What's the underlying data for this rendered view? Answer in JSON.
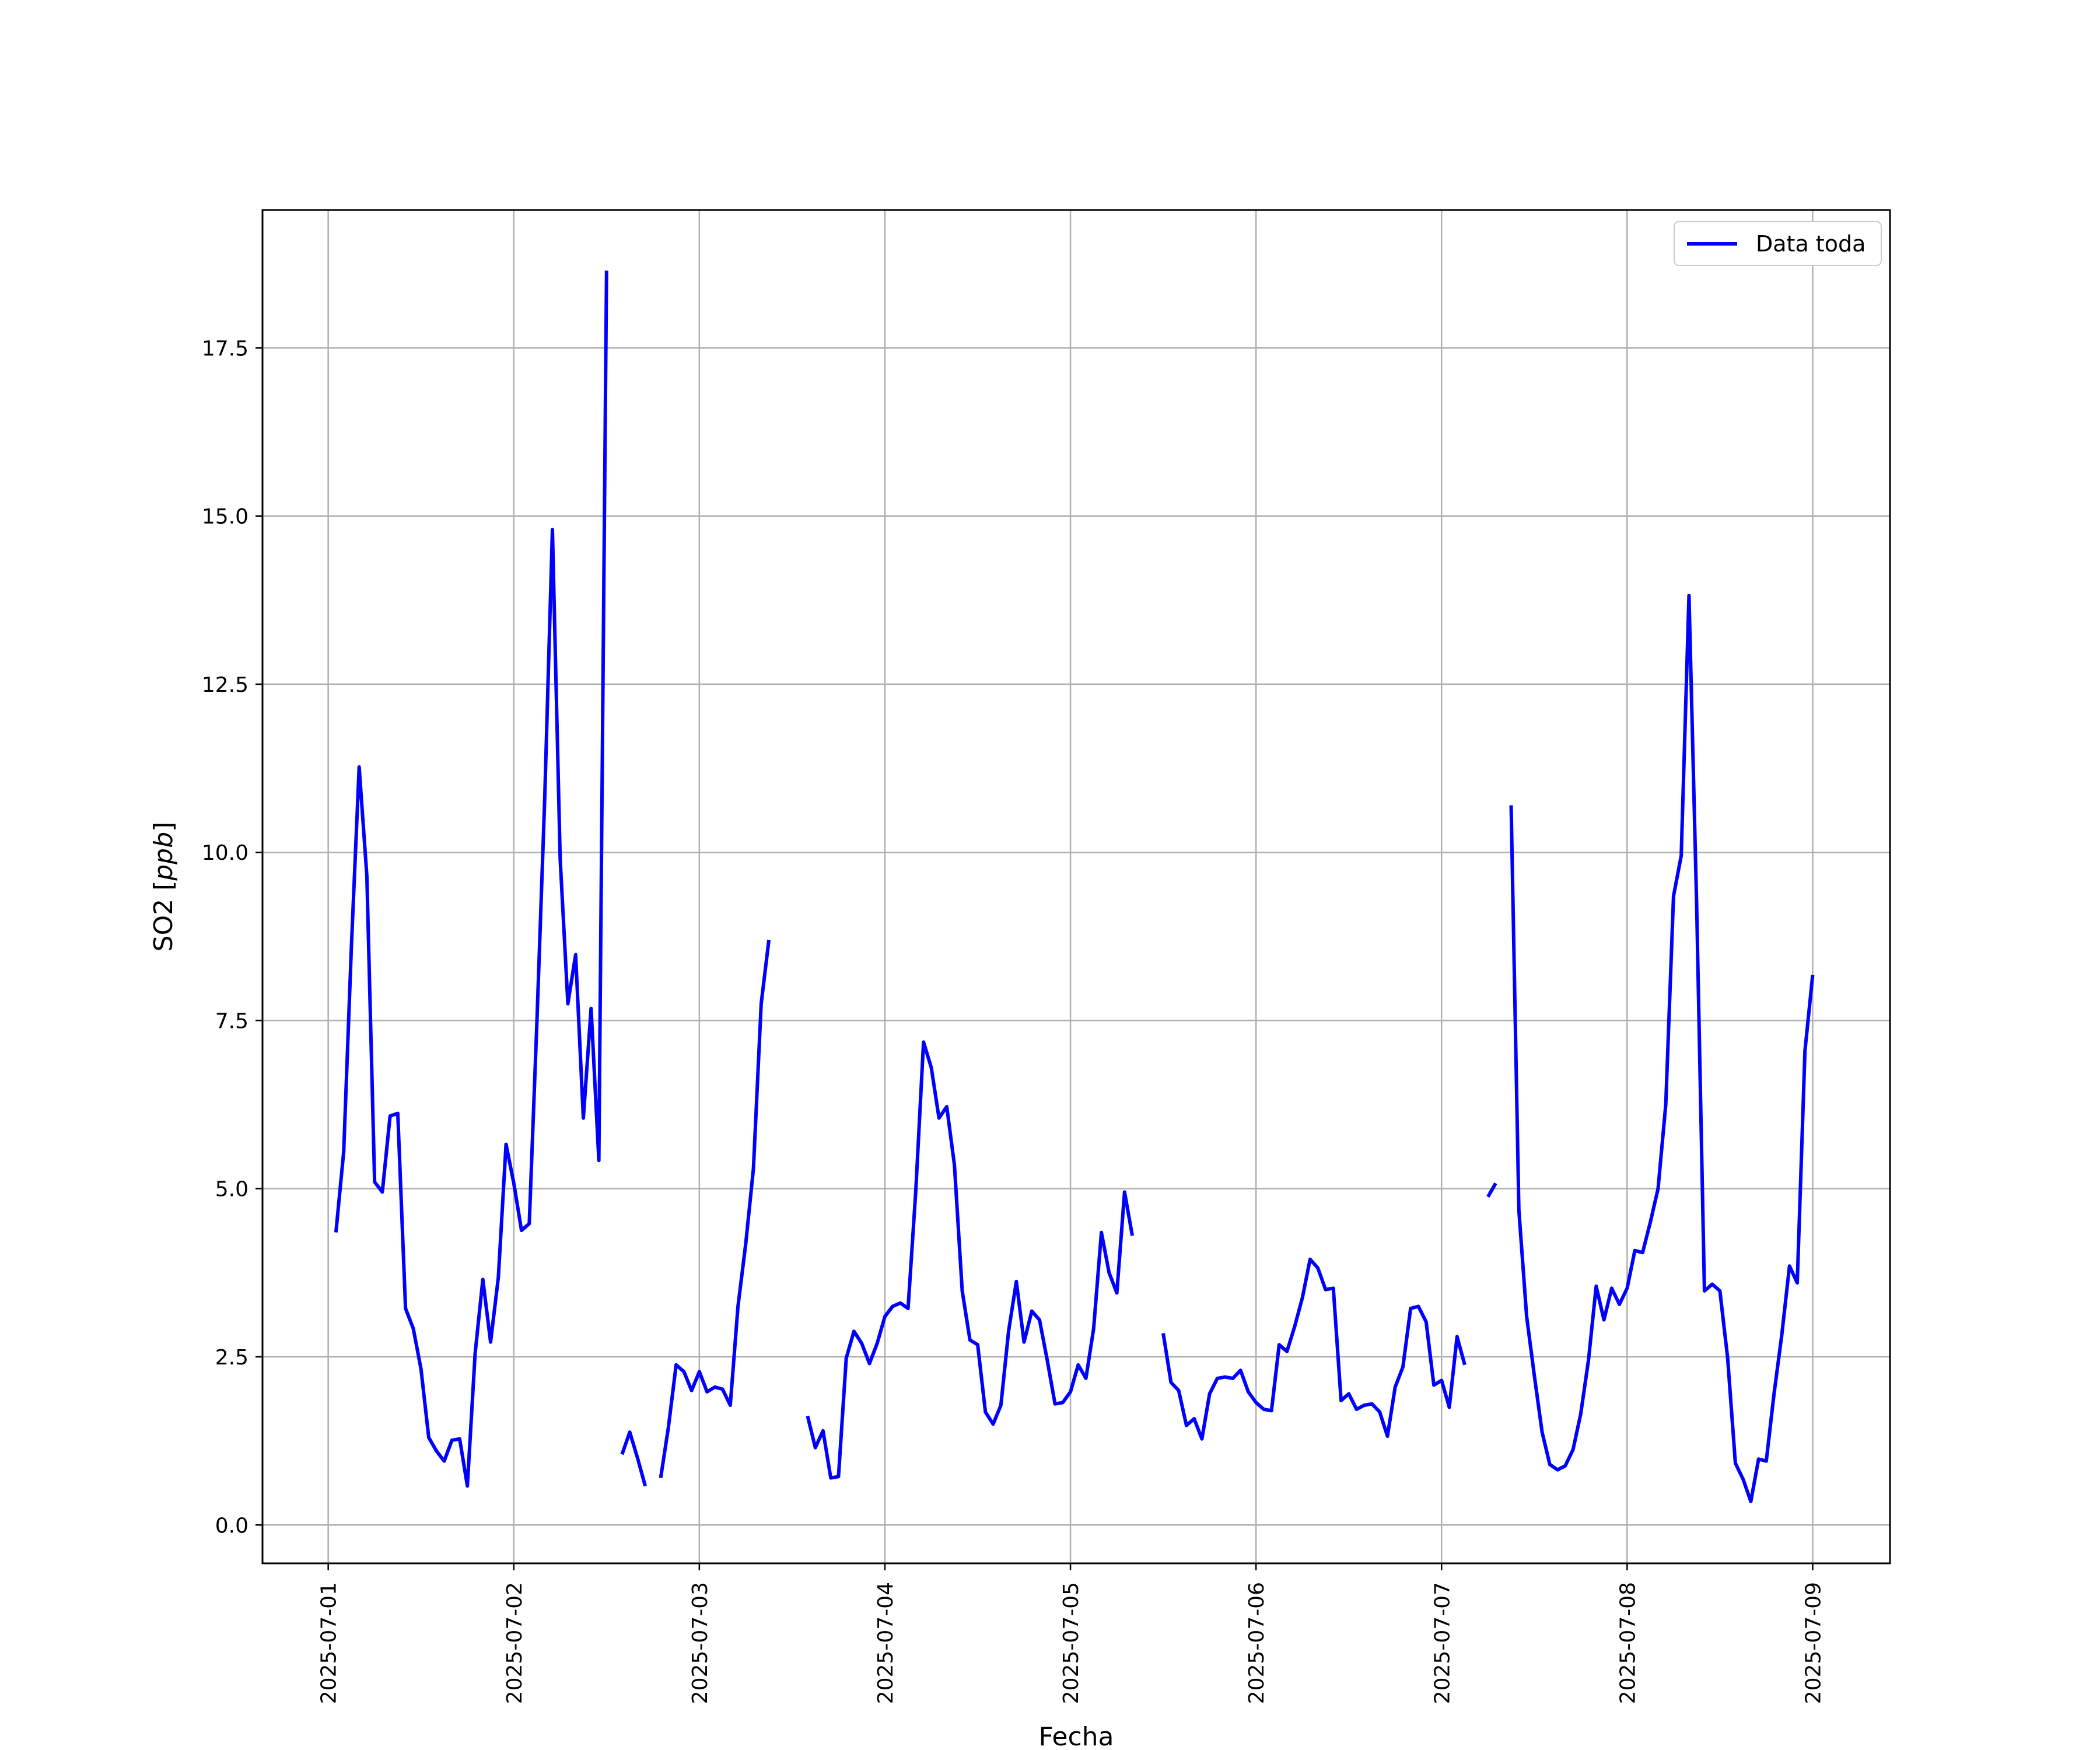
{
  "chart_data": {
    "type": "line",
    "xlabel": "Fecha",
    "ylabel": "SO2 [ppb]",
    "ylabel_main": "SO2 ",
    "ylabel_unit": "ppb",
    "x_ticks": [
      "2025-07-01",
      "2025-07-02",
      "2025-07-03",
      "2025-07-04",
      "2025-07-05",
      "2025-07-06",
      "2025-07-07",
      "2025-07-08",
      "2025-07-09"
    ],
    "y_ticks": [
      "0.0",
      "2.5",
      "5.0",
      "7.5",
      "10.0",
      "12.5",
      "15.0",
      "17.5"
    ],
    "y_tick_values": [
      0,
      2.5,
      5,
      7.5,
      10,
      12.5,
      15,
      17.5
    ],
    "xlim": [
      "2025-06-30 15:30",
      "2025-07-09 10:00"
    ],
    "ylim": [
      -0.57,
      19.55
    ],
    "grid": true,
    "legend": "top-right",
    "colors": {
      "series": "#0000ff",
      "grid": "#b0b0b0"
    },
    "series": [
      {
        "name": "Data toda",
        "points": [
          [
            "2025-07-01 01:00",
            4.35
          ],
          [
            "2025-07-01 02:00",
            5.55
          ],
          [
            "2025-07-01 03:00",
            8.6
          ],
          [
            "2025-07-01 04:00",
            11.27
          ],
          [
            "2025-07-01 05:00",
            9.65
          ],
          [
            "2025-07-01 06:00",
            5.1
          ],
          [
            "2025-07-01 07:00",
            4.95
          ],
          [
            "2025-07-01 08:00",
            6.08
          ],
          [
            "2025-07-01 09:00",
            6.12
          ],
          [
            "2025-07-01 10:00",
            3.22
          ],
          [
            "2025-07-01 11:00",
            2.92
          ],
          [
            "2025-07-01 12:00",
            2.32
          ],
          [
            "2025-07-01 13:00",
            1.3
          ],
          [
            "2025-07-01 14:00",
            1.1
          ],
          [
            "2025-07-01 15:00",
            0.95
          ],
          [
            "2025-07-01 16:00",
            1.26
          ],
          [
            "2025-07-01 17:00",
            1.28
          ],
          [
            "2025-07-01 18:00",
            0.58
          ],
          [
            "2025-07-01 19:00",
            2.55
          ],
          [
            "2025-07-01 20:00",
            3.65
          ],
          [
            "2025-07-01 21:00",
            2.72
          ],
          [
            "2025-07-01 22:00",
            3.68
          ],
          [
            "2025-07-01 23:00",
            5.66
          ],
          [
            "2025-07-02 00:00",
            5.08
          ],
          [
            "2025-07-02 01:00",
            4.38
          ],
          [
            "2025-07-02 02:00",
            4.48
          ],
          [
            "2025-07-02 03:00",
            7.5
          ],
          [
            "2025-07-02 04:00",
            10.8
          ],
          [
            "2025-07-02 05:00",
            14.8
          ],
          [
            "2025-07-02 06:00",
            9.9
          ],
          [
            "2025-07-02 07:00",
            7.75
          ],
          [
            "2025-07-02 08:00",
            8.48
          ],
          [
            "2025-07-02 09:00",
            6.05
          ],
          [
            "2025-07-02 10:00",
            7.68
          ],
          [
            "2025-07-02 11:00",
            5.42
          ],
          [
            "2025-07-02 12:00",
            18.65
          ],
          null,
          [
            "2025-07-02 14:00",
            1.05
          ],
          [
            "2025-07-02 15:00",
            1.38
          ],
          [
            "2025-07-02 16:00",
            1.0
          ],
          [
            "2025-07-02 17:00",
            0.58
          ],
          null,
          [
            "2025-07-02 19:00",
            0.7
          ],
          [
            "2025-07-02 20:00",
            1.45
          ],
          [
            "2025-07-02 21:00",
            2.38
          ],
          [
            "2025-07-02 22:00",
            2.28
          ],
          [
            "2025-07-02 23:00",
            2.0
          ],
          [
            "2025-07-03 00:00",
            2.28
          ],
          [
            "2025-07-03 01:00",
            1.98
          ],
          [
            "2025-07-03 02:00",
            2.05
          ],
          [
            "2025-07-03 03:00",
            2.02
          ],
          [
            "2025-07-03 04:00",
            1.78
          ],
          [
            "2025-07-03 05:00",
            3.25
          ],
          [
            "2025-07-03 06:00",
            4.18
          ],
          [
            "2025-07-03 07:00",
            5.3
          ],
          [
            "2025-07-03 08:00",
            7.75
          ],
          [
            "2025-07-03 09:00",
            8.7
          ],
          null,
          [
            "2025-07-03 14:00",
            1.62
          ],
          [
            "2025-07-03 15:00",
            1.15
          ],
          [
            "2025-07-03 16:00",
            1.4
          ],
          [
            "2025-07-03 17:00",
            0.7
          ],
          [
            "2025-07-03 18:00",
            0.72
          ],
          [
            "2025-07-03 19:00",
            2.48
          ],
          [
            "2025-07-03 20:00",
            2.88
          ],
          [
            "2025-07-03 21:00",
            2.7
          ],
          [
            "2025-07-03 22:00",
            2.4
          ],
          [
            "2025-07-03 23:00",
            2.7
          ],
          [
            "2025-07-04 00:00",
            3.1
          ],
          [
            "2025-07-04 01:00",
            3.25
          ],
          [
            "2025-07-04 02:00",
            3.3
          ],
          [
            "2025-07-04 03:00",
            3.22
          ],
          [
            "2025-07-04 04:00",
            4.98
          ],
          [
            "2025-07-04 05:00",
            7.18
          ],
          [
            "2025-07-04 06:00",
            6.8
          ],
          [
            "2025-07-04 07:00",
            6.05
          ],
          [
            "2025-07-04 08:00",
            6.22
          ],
          [
            "2025-07-04 09:00",
            5.35
          ],
          [
            "2025-07-04 10:00",
            3.48
          ],
          [
            "2025-07-04 11:00",
            2.75
          ],
          [
            "2025-07-04 12:00",
            2.68
          ],
          [
            "2025-07-04 13:00",
            1.68
          ],
          [
            "2025-07-04 14:00",
            1.5
          ],
          [
            "2025-07-04 15:00",
            1.78
          ],
          [
            "2025-07-04 16:00",
            2.88
          ],
          [
            "2025-07-04 17:00",
            3.62
          ],
          [
            "2025-07-04 18:00",
            2.72
          ],
          [
            "2025-07-04 19:00",
            3.18
          ],
          [
            "2025-07-04 20:00",
            3.05
          ],
          [
            "2025-07-04 21:00",
            2.45
          ],
          [
            "2025-07-04 22:00",
            1.8
          ],
          [
            "2025-07-04 23:00",
            1.82
          ],
          [
            "2025-07-05 00:00",
            1.98
          ],
          [
            "2025-07-05 01:00",
            2.38
          ],
          [
            "2025-07-05 02:00",
            2.18
          ],
          [
            "2025-07-05 03:00",
            2.92
          ],
          [
            "2025-07-05 04:00",
            4.35
          ],
          [
            "2025-07-05 05:00",
            3.75
          ],
          [
            "2025-07-05 06:00",
            3.45
          ],
          [
            "2025-07-05 07:00",
            4.95
          ],
          [
            "2025-07-05 08:00",
            4.3
          ],
          null,
          [
            "2025-07-05 12:00",
            2.85
          ],
          [
            "2025-07-05 13:00",
            2.12
          ],
          [
            "2025-07-05 14:00",
            2.0
          ],
          [
            "2025-07-05 15:00",
            1.48
          ],
          [
            "2025-07-05 16:00",
            1.58
          ],
          [
            "2025-07-05 17:00",
            1.28
          ],
          [
            "2025-07-05 18:00",
            1.95
          ],
          [
            "2025-07-05 19:00",
            2.18
          ],
          [
            "2025-07-05 20:00",
            2.2
          ],
          [
            "2025-07-05 21:00",
            2.18
          ],
          [
            "2025-07-05 22:00",
            2.3
          ],
          [
            "2025-07-05 23:00",
            1.98
          ],
          [
            "2025-07-06 00:00",
            1.82
          ],
          [
            "2025-07-06 01:00",
            1.72
          ],
          [
            "2025-07-06 02:00",
            1.7
          ],
          [
            "2025-07-06 03:00",
            2.68
          ],
          [
            "2025-07-06 04:00",
            2.58
          ],
          [
            "2025-07-06 05:00",
            2.95
          ],
          [
            "2025-07-06 06:00",
            3.38
          ],
          [
            "2025-07-06 07:00",
            3.95
          ],
          [
            "2025-07-06 08:00",
            3.82
          ],
          [
            "2025-07-06 09:00",
            3.5
          ],
          [
            "2025-07-06 10:00",
            3.52
          ],
          [
            "2025-07-06 11:00",
            1.85
          ],
          [
            "2025-07-06 12:00",
            1.95
          ],
          [
            "2025-07-06 13:00",
            1.72
          ],
          [
            "2025-07-06 14:00",
            1.78
          ],
          [
            "2025-07-06 15:00",
            1.8
          ],
          [
            "2025-07-06 16:00",
            1.68
          ],
          [
            "2025-07-06 17:00",
            1.32
          ],
          [
            "2025-07-06 18:00",
            2.05
          ],
          [
            "2025-07-06 19:00",
            2.35
          ],
          [
            "2025-07-06 20:00",
            3.22
          ],
          [
            "2025-07-06 21:00",
            3.25
          ],
          [
            "2025-07-06 22:00",
            3.02
          ],
          [
            "2025-07-06 23:00",
            2.08
          ],
          [
            "2025-07-07 00:00",
            2.15
          ],
          [
            "2025-07-07 01:00",
            1.75
          ],
          [
            "2025-07-07 02:00",
            2.8
          ],
          [
            "2025-07-07 03:00",
            2.38
          ],
          null,
          [
            "2025-07-07 06:00",
            4.88
          ],
          [
            "2025-07-07 07:00",
            5.08
          ],
          null,
          [
            "2025-07-07 09:00",
            10.7
          ],
          [
            "2025-07-07 10:00",
            4.68
          ],
          [
            "2025-07-07 11:00",
            3.1
          ],
          [
            "2025-07-07 12:00",
            2.22
          ],
          [
            "2025-07-07 13:00",
            1.38
          ],
          [
            "2025-07-07 14:00",
            0.9
          ],
          [
            "2025-07-07 15:00",
            0.82
          ],
          [
            "2025-07-07 16:00",
            0.88
          ],
          [
            "2025-07-07 17:00",
            1.12
          ],
          [
            "2025-07-07 18:00",
            1.65
          ],
          [
            "2025-07-07 19:00",
            2.45
          ],
          [
            "2025-07-07 20:00",
            3.55
          ],
          [
            "2025-07-07 21:00",
            3.05
          ],
          [
            "2025-07-07 22:00",
            3.52
          ],
          [
            "2025-07-07 23:00",
            3.28
          ],
          [
            "2025-07-08 00:00",
            3.52
          ],
          [
            "2025-07-08 01:00",
            4.08
          ],
          [
            "2025-07-08 02:00",
            4.05
          ],
          [
            "2025-07-08 03:00",
            4.5
          ],
          [
            "2025-07-08 04:00",
            5.0
          ],
          [
            "2025-07-08 05:00",
            6.25
          ],
          [
            "2025-07-08 06:00",
            9.35
          ],
          [
            "2025-07-08 07:00",
            9.95
          ],
          [
            "2025-07-08 08:00",
            13.82
          ],
          [
            "2025-07-08 09:00",
            9.2
          ],
          [
            "2025-07-08 10:00",
            3.48
          ],
          [
            "2025-07-08 11:00",
            3.58
          ],
          [
            "2025-07-08 12:00",
            3.48
          ],
          [
            "2025-07-08 13:00",
            2.48
          ],
          [
            "2025-07-08 14:00",
            0.92
          ],
          [
            "2025-07-08 15:00",
            0.68
          ],
          [
            "2025-07-08 16:00",
            0.35
          ],
          [
            "2025-07-08 17:00",
            0.98
          ],
          [
            "2025-07-08 18:00",
            0.95
          ],
          [
            "2025-07-08 19:00",
            1.95
          ],
          [
            "2025-07-08 20:00",
            2.82
          ],
          [
            "2025-07-08 21:00",
            3.85
          ],
          [
            "2025-07-08 22:00",
            3.6
          ],
          [
            "2025-07-08 23:00",
            7.05
          ],
          [
            "2025-07-09 00:00",
            8.18
          ]
        ]
      }
    ]
  }
}
